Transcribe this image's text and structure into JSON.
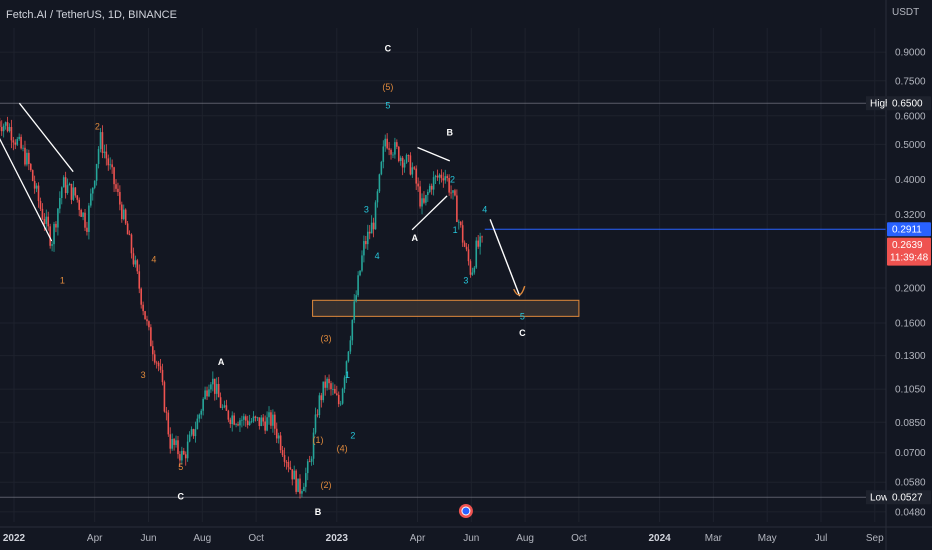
{
  "chart_data": {
    "type": "candlestick",
    "title": "Fetch.AI / TetherUS, 1D, BINANCE",
    "currency": "USDT",
    "y_scale": "log",
    "ylim": [
      0.045,
      1.05
    ],
    "y_ticks": [
      {
        "value": 0.9,
        "label": "0.9000"
      },
      {
        "value": 0.75,
        "label": "0.7500"
      },
      {
        "value": 0.6,
        "label": "0.6000"
      },
      {
        "value": 0.5,
        "label": "0.5000"
      },
      {
        "value": 0.4,
        "label": "0.4000"
      },
      {
        "value": 0.32,
        "label": "0.3200"
      },
      {
        "value": 0.2,
        "label": "0.2000"
      },
      {
        "value": 0.16,
        "label": "0.1600"
      },
      {
        "value": 0.13,
        "label": "0.1300"
      },
      {
        "value": 0.105,
        "label": "0.1050"
      },
      {
        "value": 0.085,
        "label": "0.0850"
      },
      {
        "value": 0.07,
        "label": "0.0700"
      },
      {
        "value": 0.058,
        "label": "0.0580"
      },
      {
        "value": 0.048,
        "label": "0.0480"
      }
    ],
    "x_ticks": [
      {
        "t": 0,
        "label": "2022",
        "year": true
      },
      {
        "t": 3,
        "label": "Apr",
        "year": false
      },
      {
        "t": 5,
        "label": "Jun",
        "year": false
      },
      {
        "t": 7,
        "label": "Aug",
        "year": false
      },
      {
        "t": 9,
        "label": "Oct",
        "year": false
      },
      {
        "t": 12,
        "label": "2023",
        "year": true
      },
      {
        "t": 15,
        "label": "Apr",
        "year": false
      },
      {
        "t": 17,
        "label": "Jun",
        "year": false
      },
      {
        "t": 19,
        "label": "Aug",
        "year": false
      },
      {
        "t": 21,
        "label": "Oct",
        "year": false
      },
      {
        "t": 24,
        "label": "2024",
        "year": true
      },
      {
        "t": 26,
        "label": "Mar",
        "year": false
      },
      {
        "t": 28,
        "label": "May",
        "year": false
      },
      {
        "t": 30,
        "label": "Jul",
        "year": false
      },
      {
        "t": 32,
        "label": "Sep",
        "year": false
      }
    ],
    "price_path": [
      [
        -0.6,
        0.58
      ],
      [
        -0.2,
        0.56
      ],
      [
        0.5,
        0.45
      ],
      [
        1.0,
        0.33
      ],
      [
        1.4,
        0.27
      ],
      [
        1.8,
        0.39
      ],
      [
        2.3,
        0.36
      ],
      [
        2.7,
        0.3
      ],
      [
        3.2,
        0.52
      ],
      [
        3.6,
        0.42
      ],
      [
        4.0,
        0.33
      ],
      [
        4.5,
        0.23
      ],
      [
        5.0,
        0.15
      ],
      [
        5.4,
        0.12
      ],
      [
        5.8,
        0.075
      ],
      [
        6.3,
        0.068
      ],
      [
        6.8,
        0.085
      ],
      [
        7.3,
        0.115
      ],
      [
        7.8,
        0.09
      ],
      [
        8.4,
        0.087
      ],
      [
        9.0,
        0.085
      ],
      [
        9.6,
        0.086
      ],
      [
        10.3,
        0.063
      ],
      [
        10.6,
        0.055
      ],
      [
        11.0,
        0.065
      ],
      [
        11.3,
        0.095
      ],
      [
        11.6,
        0.11
      ],
      [
        12.1,
        0.095
      ],
      [
        12.5,
        0.15
      ],
      [
        13.0,
        0.26
      ],
      [
        13.4,
        0.31
      ],
      [
        13.8,
        0.52
      ],
      [
        14.2,
        0.48
      ],
      [
        14.8,
        0.43
      ],
      [
        15.2,
        0.33
      ],
      [
        15.5,
        0.39
      ],
      [
        16.0,
        0.42
      ],
      [
        16.4,
        0.34
      ],
      [
        16.7,
        0.27
      ],
      [
        17.0,
        0.22
      ],
      [
        17.2,
        0.26
      ],
      [
        17.4,
        0.2639
      ]
    ],
    "current_price": "0.2639",
    "countdown": "11:39:48",
    "resistance": {
      "label": "0.2911",
      "value": 0.2911
    },
    "high": {
      "label": "High",
      "value": 0.65,
      "value_label": "0.6500"
    },
    "low": {
      "label": "Low",
      "value": 0.0527,
      "value_label": "0.0527"
    },
    "target_zone": {
      "t_start": 11.1,
      "t_end": 21.0,
      "y_top": 0.185,
      "y_bottom": 0.167
    },
    "projection": [
      [
        17.7,
        0.31
      ],
      [
        18.8,
        0.19
      ]
    ],
    "annotations": [
      {
        "text": "C",
        "t": 13.9,
        "y": 0.92,
        "color": "white"
      },
      {
        "text": "(5)",
        "t": 13.9,
        "y": 0.72,
        "color": "orange"
      },
      {
        "text": "5",
        "t": 13.9,
        "y": 0.64,
        "color": "cyan"
      },
      {
        "text": "2",
        "t": 3.1,
        "y": 0.56,
        "color": "orange"
      },
      {
        "text": "1",
        "t": 1.8,
        "y": 0.21,
        "color": "orange"
      },
      {
        "text": "4",
        "t": 5.2,
        "y": 0.24,
        "color": "orange"
      },
      {
        "text": "3",
        "t": 4.8,
        "y": 0.115,
        "color": "orange"
      },
      {
        "text": "5",
        "t": 6.2,
        "y": 0.064,
        "color": "orange"
      },
      {
        "text": "C",
        "t": 6.2,
        "y": 0.053,
        "color": "white"
      },
      {
        "text": "A",
        "t": 7.7,
        "y": 0.125,
        "color": "white"
      },
      {
        "text": "(3)",
        "t": 11.6,
        "y": 0.145,
        "color": "orange"
      },
      {
        "text": "(1)",
        "t": 11.3,
        "y": 0.076,
        "color": "orange"
      },
      {
        "text": "(4)",
        "t": 12.2,
        "y": 0.072,
        "color": "orange"
      },
      {
        "text": "(2)",
        "t": 11.6,
        "y": 0.057,
        "color": "orange"
      },
      {
        "text": "B",
        "t": 11.3,
        "y": 0.048,
        "color": "white"
      },
      {
        "text": "1",
        "t": 12.4,
        "y": 0.115,
        "color": "cyan"
      },
      {
        "text": "2",
        "t": 12.6,
        "y": 0.078,
        "color": "cyan"
      },
      {
        "text": "3",
        "t": 13.1,
        "y": 0.33,
        "color": "cyan"
      },
      {
        "text": "4",
        "t": 13.5,
        "y": 0.245,
        "color": "cyan"
      },
      {
        "text": "B",
        "t": 16.2,
        "y": 0.54,
        "color": "white"
      },
      {
        "text": "A",
        "t": 14.9,
        "y": 0.275,
        "color": "white"
      },
      {
        "text": "2",
        "t": 16.3,
        "y": 0.4,
        "color": "cyan"
      },
      {
        "text": "1",
        "t": 16.4,
        "y": 0.29,
        "color": "cyan"
      },
      {
        "text": "4",
        "t": 17.5,
        "y": 0.33,
        "color": "cyan"
      },
      {
        "text": "3",
        "t": 16.8,
        "y": 0.21,
        "color": "cyan"
      },
      {
        "text": "5",
        "t": 18.9,
        "y": 0.167,
        "color": "cyan"
      },
      {
        "text": "C",
        "t": 18.9,
        "y": 0.15,
        "color": "white"
      }
    ],
    "wave_lines": [
      [
        [
          -0.6,
          0.53
        ],
        [
          1.4,
          0.27
        ]
      ],
      [
        [
          0.2,
          0.65
        ],
        [
          2.2,
          0.42
        ]
      ],
      [
        [
          14.8,
          0.29
        ],
        [
          16.1,
          0.36
        ]
      ],
      [
        [
          15.0,
          0.49
        ],
        [
          16.2,
          0.45
        ]
      ]
    ],
    "colors": {
      "up": "#26a69a",
      "down": "#ef5350",
      "resistance": "#2962ff",
      "zone": "#e08a3c",
      "white": "#ffffff"
    }
  }
}
